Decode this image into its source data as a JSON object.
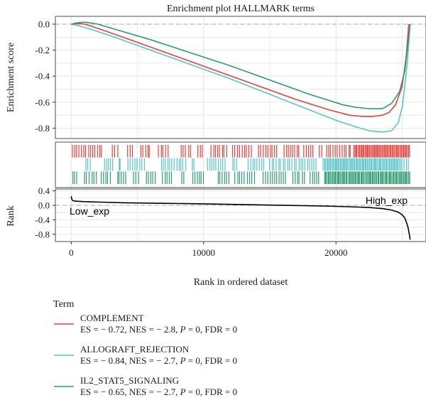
{
  "chart_data": {
    "type": "line",
    "title": "Enrichment plot HALLMARK terms",
    "ylabel_top": "Enrichment score",
    "ylabel_bottom": "Rank",
    "xlabel": "Rank in ordered dataset",
    "xlim": [
      -1200,
      26800
    ],
    "es_ylim": [
      -0.88,
      0.06
    ],
    "rank_ylim": [
      -1.0,
      0.45
    ],
    "x_ticks": [
      0,
      10000,
      20000
    ],
    "es_yticks": [
      0.0,
      -0.2,
      -0.4,
      -0.6,
      -0.8
    ],
    "rank_yticks": [
      0.4,
      0.0,
      -0.4,
      -0.8
    ],
    "es_tick_labels": [
      "0.0",
      "-0.2",
      "-0.4",
      "-0.6",
      "-0.8"
    ],
    "rank_tick_labels": [
      "0.4",
      "0.0",
      "-0.4",
      "-0.8"
    ],
    "x_tick_labels": [
      "0",
      "10000",
      "20000"
    ],
    "annotations": {
      "low": "Low_exp",
      "high": "High_exp"
    },
    "colors": {
      "complement": "#e8413c",
      "allograft": "#5ac3c8",
      "il2": "#2e9c73",
      "rank_curve": "#000000",
      "grid": "#e8e8e0",
      "panel_border": "#4d4d4d",
      "zero_line": "#a8a8a8"
    },
    "series": [
      {
        "name": "COMPLEMENT",
        "stats": {
          "es": "ES = − 0.72,",
          "nes": "NES = − 2.8,",
          "p_label": "P",
          "p_value": " = 0,",
          "fdr": "FDR = 0"
        },
        "x": [
          0,
          500,
          1000,
          1500,
          2500,
          5000,
          8000,
          11000,
          14000,
          17000,
          19500,
          21000,
          22000,
          22800,
          23500,
          24000,
          24500,
          25000,
          25300,
          25500
        ],
        "es": [
          0.0,
          0.005,
          0.0,
          -0.015,
          -0.05,
          -0.14,
          -0.25,
          -0.36,
          -0.47,
          -0.58,
          -0.66,
          -0.7,
          -0.71,
          -0.71,
          -0.7,
          -0.68,
          -0.62,
          -0.48,
          -0.25,
          0.0
        ],
        "hits": [
          [
            0,
            2400
          ],
          [
            3000,
            3600
          ],
          [
            4200,
            4700
          ],
          [
            5200,
            6000
          ],
          [
            6500,
            7400
          ],
          [
            8200,
            9100
          ],
          [
            9500,
            10000
          ],
          [
            10500,
            11800
          ],
          [
            12100,
            13700
          ],
          [
            14100,
            15600
          ],
          [
            16000,
            17300
          ],
          [
            17500,
            18300
          ],
          [
            18600,
            19000
          ],
          [
            19200,
            21200
          ],
          [
            21300,
            25600
          ]
        ]
      },
      {
        "name": "ALLOGRAFT_REJECTION",
        "stats": {
          "es": "ES = − 0.84,",
          "nes": "NES = − 2.7,",
          "p_label": "P",
          "p_value": " = 0,",
          "fdr": "FDR = 0"
        },
        "x": [
          0,
          500,
          1500,
          3000,
          6000,
          9000,
          12000,
          15000,
          18000,
          20000,
          21500,
          22500,
          23500,
          24200,
          24700,
          25000,
          25200,
          25400,
          25600
        ],
        "es": [
          0.0,
          -0.01,
          -0.04,
          -0.09,
          -0.2,
          -0.31,
          -0.42,
          -0.54,
          -0.66,
          -0.74,
          -0.79,
          -0.82,
          -0.83,
          -0.82,
          -0.76,
          -0.64,
          -0.48,
          -0.28,
          0.0
        ],
        "hits": [
          [
            1000,
            1500
          ],
          [
            2400,
            3200
          ],
          [
            3600,
            3700
          ],
          [
            4200,
            5600
          ],
          [
            6700,
            8700
          ],
          [
            9000,
            9400
          ],
          [
            10200,
            11700
          ],
          [
            12100,
            12600
          ],
          [
            13300,
            14600
          ],
          [
            14900,
            18600
          ],
          [
            19000,
            24900
          ],
          [
            24900,
            25600
          ]
        ]
      },
      {
        "name": "IL2_STAT5_SIGNALING",
        "stats": {
          "es": "ES = − 0.65,",
          "nes": "NES = − 2.7,",
          "p_label": "P",
          "p_value": " = 0,",
          "fdr": "FDR = 0"
        },
        "x": [
          0,
          400,
          1000,
          1400,
          2000,
          3000,
          6000,
          9000,
          12000,
          15000,
          18000,
          20500,
          21500,
          22500,
          23500,
          24200,
          24800,
          25200,
          25600
        ],
        "es": [
          0.0,
          0.01,
          0.015,
          0.01,
          0.0,
          -0.03,
          -0.12,
          -0.22,
          -0.32,
          -0.43,
          -0.54,
          -0.62,
          -0.64,
          -0.65,
          -0.65,
          -0.61,
          -0.52,
          -0.36,
          0.0
        ],
        "hits": [
          [
            0,
            500
          ],
          [
            900,
            2000
          ],
          [
            2200,
            3000
          ],
          [
            3400,
            4200
          ],
          [
            4600,
            5200
          ],
          [
            5600,
            6400
          ],
          [
            6800,
            7700
          ],
          [
            8200,
            8600
          ],
          [
            9100,
            10100
          ],
          [
            11000,
            12000
          ],
          [
            12300,
            13900
          ],
          [
            14400,
            16300
          ],
          [
            16600,
            17700
          ],
          [
            18000,
            18800
          ],
          [
            19100,
            25600
          ]
        ]
      }
    ],
    "rank_curve": {
      "x": [
        0,
        30,
        80,
        200,
        500,
        1000,
        2000,
        4000,
        7000,
        10000,
        13000,
        16000,
        19000,
        21000,
        22500,
        23500,
        24200,
        24700,
        25000,
        25200,
        25350,
        25450,
        25550,
        25600
      ],
      "y": [
        0.25,
        0.18,
        0.14,
        0.12,
        0.11,
        0.1,
        0.09,
        0.07,
        0.055,
        0.04,
        0.02,
        0.0,
        -0.02,
        -0.04,
        -0.06,
        -0.09,
        -0.13,
        -0.19,
        -0.26,
        -0.35,
        -0.5,
        -0.62,
        -0.82,
        -0.95
      ]
    },
    "legend": {
      "title": "Term",
      "placement": "bottom-left"
    }
  }
}
